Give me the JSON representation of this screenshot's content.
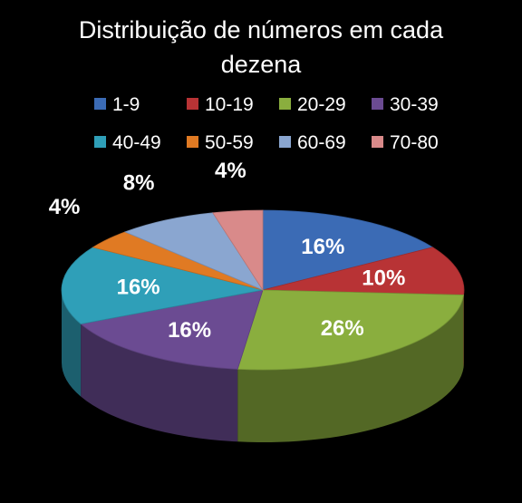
{
  "chart_data": {
    "type": "pie",
    "title": "Distribuição de números em cada dezena",
    "legend_position": "top",
    "categories": [
      "1-9",
      "10-19",
      "20-29",
      "30-39",
      "40-49",
      "50-59",
      "60-69",
      "70-80"
    ],
    "values": [
      16,
      10,
      26,
      16,
      16,
      4,
      8,
      4
    ],
    "labels": [
      "16%",
      "10%",
      "26%",
      "16%",
      "16%",
      "4%",
      "8%",
      "4%"
    ],
    "colors": [
      "#3b6bb5",
      "#b83335",
      "#8aae3e",
      "#6b4b92",
      "#2f9fb8",
      "#e07a23",
      "#8aa6d0",
      "#d98a8a"
    ],
    "three_d": true
  }
}
